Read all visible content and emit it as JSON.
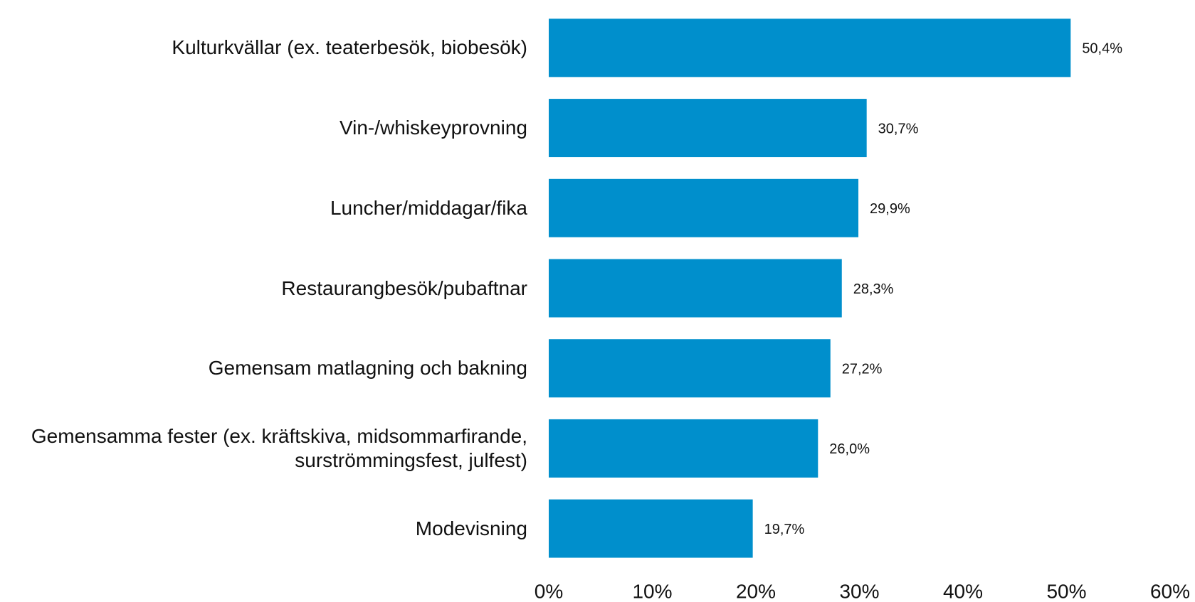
{
  "chart_data": {
    "type": "bar",
    "orientation": "horizontal",
    "categories": [
      "Kulturkvällar (ex. teaterbesök, biobesök)",
      "Vin-/whiskeyprovning",
      "Luncher/middagar/fika",
      "Restaurangbesök/pubaftnar",
      "Gemensam matlagning och bakning",
      "Gemensamma fester (ex. kräftskiva, midsommarfirande,\nsurströmmingsfest, julfest)",
      "Modevisning"
    ],
    "values": [
      50.4,
      30.7,
      29.9,
      28.3,
      27.2,
      26.0,
      19.7
    ],
    "value_labels": [
      "50,4%",
      "30,7%",
      "29,9%",
      "28,3%",
      "27,2%",
      "26,0%",
      "19,7%"
    ],
    "color": "#008fcc",
    "xlim": [
      0,
      60
    ],
    "xticks": [
      {
        "value": 0,
        "label": "0%"
      },
      {
        "value": 10,
        "label": "10%"
      },
      {
        "value": 20,
        "label": "20%"
      },
      {
        "value": 30,
        "label": "30%"
      },
      {
        "value": 40,
        "label": "40%"
      },
      {
        "value": 50,
        "label": "50%"
      },
      {
        "value": 60,
        "label": "60%"
      }
    ],
    "grid": false
  }
}
